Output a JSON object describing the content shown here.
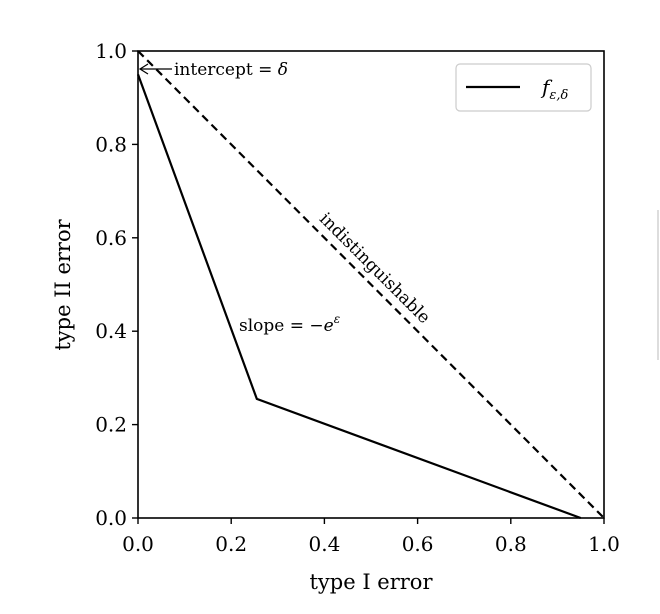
{
  "chart_data": {
    "type": "line",
    "xlabel": "type I error",
    "ylabel": "type II error",
    "xlim": [
      0,
      1
    ],
    "ylim": [
      0,
      1
    ],
    "xticks": [
      "0.0",
      "0.2",
      "0.4",
      "0.6",
      "0.8",
      "1.0"
    ],
    "yticks": [
      "0.0",
      "0.2",
      "0.4",
      "0.6",
      "0.8",
      "1.0"
    ],
    "grid": false,
    "legend_position": "top-right",
    "series": [
      {
        "name": "f_{ε,δ}",
        "style": "solid",
        "x": [
          0,
          0.255,
          0.95
        ],
        "y": [
          0.95,
          0.255,
          0
        ]
      },
      {
        "style": "dashed",
        "x": [
          0,
          1
        ],
        "y": [
          1,
          0
        ]
      }
    ],
    "legend": {
      "label_main": "f",
      "label_sub": "ε,δ"
    },
    "annotations": {
      "intercept_prefix": "intercept = ",
      "intercept_symbol": "δ",
      "slope_prefix": "slope = −",
      "slope_base": "e",
      "slope_exp": "ε",
      "indistinguishable": "indistinguishable"
    },
    "colors": {
      "line": "#000000",
      "legend_border": "#cccccc"
    }
  }
}
